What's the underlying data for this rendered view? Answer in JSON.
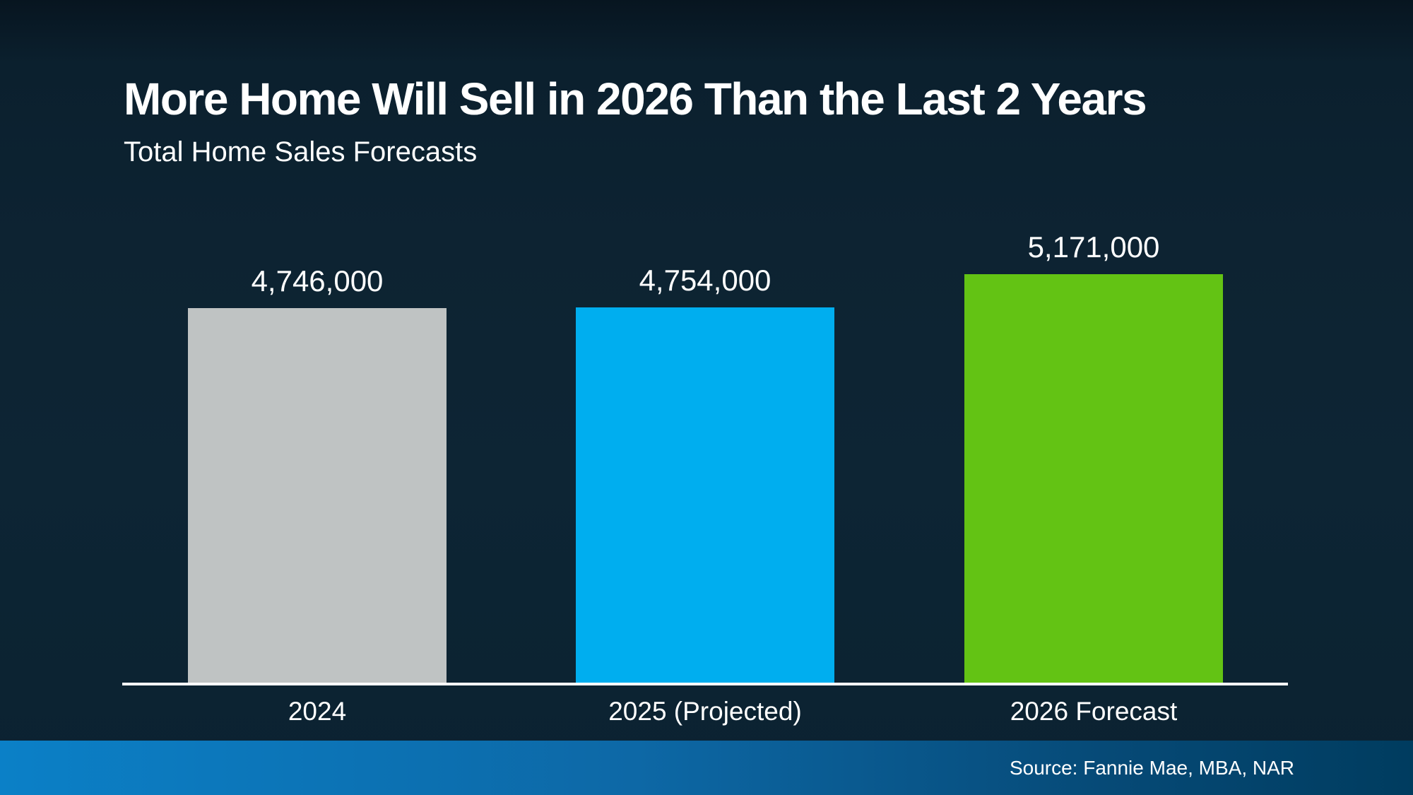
{
  "title": "More Home Will Sell in 2026 Than the Last 2 Years",
  "subtitle": "Total Home Sales Forecasts",
  "footer": {
    "source": "Source: Fannie Mae, MBA, NAR"
  },
  "colors": {
    "background_top": "#071520",
    "background_mid": "#0d2434",
    "text": "#ffffff",
    "axis": "#ffffff",
    "footer_gradient_left": "#0b80c7",
    "footer_gradient_right": "#003c5f"
  },
  "chart_data": {
    "type": "bar",
    "title": "More Home Will Sell in 2026 Than the Last 2 Years",
    "subtitle": "Total Home Sales Forecasts",
    "categories": [
      "2024",
      "2025 (Projected)",
      "2026 Forecast"
    ],
    "values": [
      4746000,
      4754000,
      5171000
    ],
    "values_formatted": [
      "4,746,000",
      "4,754,000",
      "5,171,000"
    ],
    "bar_colors": [
      "#bfc3c3",
      "#00aeef",
      "#63c314"
    ],
    "ylim": [
      0,
      5171000
    ],
    "grid": false,
    "legend": false,
    "data_labels": "above bars",
    "source_note": "Source: Fannie Mae, MBA, NAR"
  }
}
